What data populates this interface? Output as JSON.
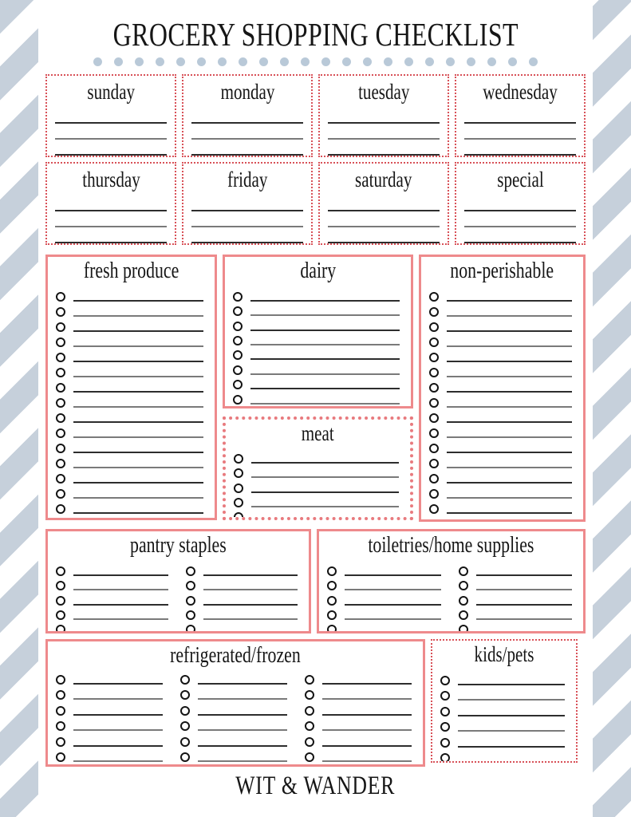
{
  "title": "GROCERY SHOPPING CHECKLIST",
  "footer": "WIT & WANDER",
  "decor": {
    "dot_count": 22,
    "colors": {
      "stripe": "#c6d0db",
      "dot": "#b9c9d8",
      "border_solid": "#ee8a8c",
      "border_dotted": "#d85158",
      "border_dotted_thick": "#e87a7e",
      "line_dark": "#2d2d2d",
      "line_gray": "#7a7a7a"
    }
  },
  "day_boxes": {
    "labels": [
      "sunday",
      "monday",
      "tuesday",
      "wednesday",
      "thursday",
      "friday",
      "saturday",
      "special"
    ],
    "lines_per_box": 3
  },
  "sections": {
    "fresh_produce": {
      "title": "fresh produce",
      "item_count": 15,
      "columns": 1
    },
    "dairy": {
      "title": "dairy",
      "item_count": 8,
      "columns": 1
    },
    "meat": {
      "title": "meat",
      "item_count": 5,
      "columns": 1
    },
    "non_perishable": {
      "title": "non-perishable",
      "item_count": 15,
      "columns": 1
    },
    "pantry_staples": {
      "title": "pantry staples",
      "item_count": 10,
      "columns": 2
    },
    "toiletries_home_supplies": {
      "title": "toiletries/home supplies",
      "item_count": 10,
      "columns": 2
    },
    "refrigerated_frozen": {
      "title": "refrigerated/frozen",
      "item_count": 18,
      "columns": 3
    },
    "kids_pets": {
      "title": "kids/pets",
      "item_count": 6,
      "columns": 1
    }
  }
}
